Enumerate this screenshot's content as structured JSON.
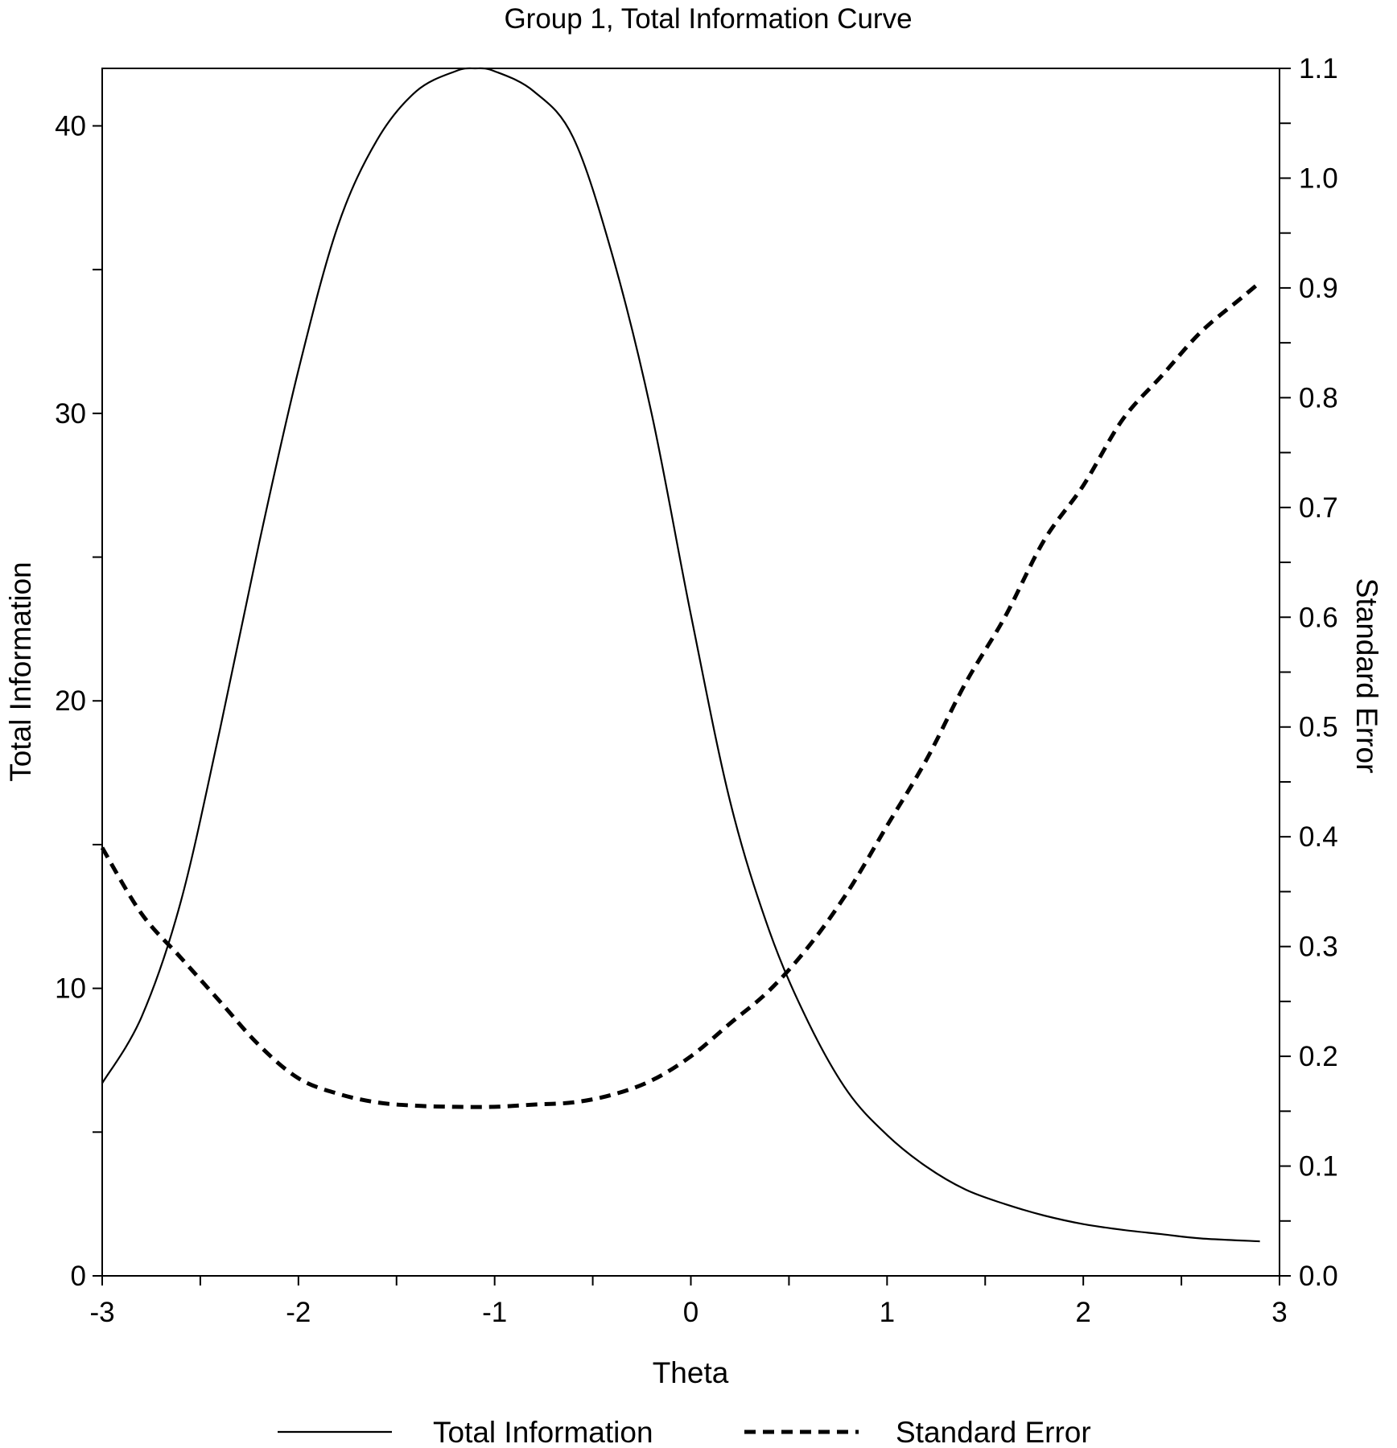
{
  "chart_data": {
    "type": "line",
    "title": "Group 1, Total Information Curve",
    "xlabel": "Theta",
    "ylabel": "Total Information",
    "y2label": "Standard Error",
    "xlim": [
      -3,
      3
    ],
    "ylim": [
      0,
      42
    ],
    "y2lim": [
      0,
      1.1
    ],
    "x_ticks": [
      "-3",
      "-2",
      "-1",
      "0",
      "1",
      "2",
      "3"
    ],
    "y_ticks": [
      "0",
      "10",
      "20",
      "30",
      "40"
    ],
    "y2_ticks": [
      "0.0",
      "0.1",
      "0.2",
      "0.3",
      "0.4",
      "0.5",
      "0.6",
      "0.7",
      "0.8",
      "0.9",
      "1.0",
      "1.1"
    ],
    "grid": false,
    "legend": "bottom",
    "series": [
      {
        "name": "Total Information",
        "axis": "left",
        "style": "solid",
        "x": [
          -3.0,
          -2.8,
          -2.6,
          -2.4,
          -2.2,
          -2.0,
          -1.8,
          -1.6,
          -1.4,
          -1.2,
          -1.1,
          -1.0,
          -0.8,
          -0.6,
          -0.4,
          -0.2,
          0.0,
          0.2,
          0.4,
          0.6,
          0.8,
          1.0,
          1.2,
          1.4,
          1.6,
          1.8,
          2.0,
          2.2,
          2.4,
          2.6,
          2.9
        ],
        "values": [
          6.7,
          9.0,
          13.0,
          19.0,
          25.5,
          31.5,
          36.5,
          39.5,
          41.2,
          41.9,
          42.0,
          41.9,
          41.2,
          39.6,
          35.5,
          30.0,
          23.0,
          16.5,
          12.0,
          8.8,
          6.4,
          4.9,
          3.8,
          3.0,
          2.5,
          2.1,
          1.8,
          1.6,
          1.45,
          1.3,
          1.2
        ]
      },
      {
        "name": "Standard Error",
        "axis": "right",
        "style": "dashed",
        "x": [
          -3.0,
          -2.8,
          -2.6,
          -2.4,
          -2.2,
          -2.0,
          -1.8,
          -1.6,
          -1.4,
          -1.2,
          -1.0,
          -0.8,
          -0.6,
          -0.4,
          -0.2,
          0.0,
          0.2,
          0.4,
          0.6,
          0.8,
          1.0,
          1.2,
          1.4,
          1.6,
          1.8,
          2.0,
          2.2,
          2.4,
          2.6,
          2.8,
          2.9
        ],
        "values": [
          0.39,
          0.33,
          0.29,
          0.25,
          0.21,
          0.18,
          0.166,
          0.158,
          0.155,
          0.154,
          0.154,
          0.156,
          0.158,
          0.165,
          0.178,
          0.2,
          0.23,
          0.26,
          0.3,
          0.35,
          0.41,
          0.47,
          0.54,
          0.6,
          0.67,
          0.72,
          0.78,
          0.82,
          0.86,
          0.89,
          0.905
        ]
      }
    ]
  }
}
